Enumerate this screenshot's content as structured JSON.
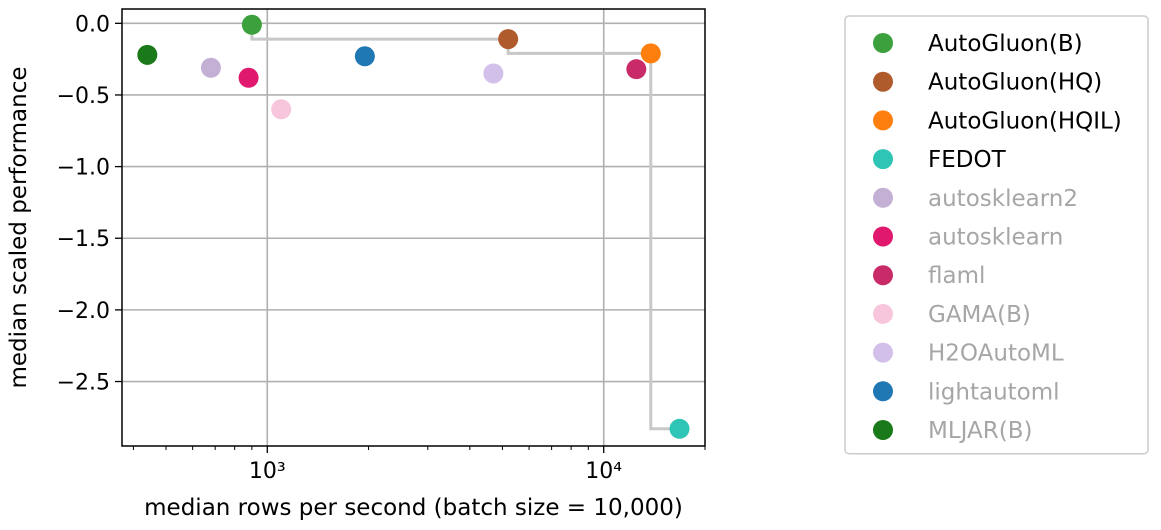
{
  "chart_data": {
    "type": "scatter",
    "xlabel": "median rows per second (batch size = 10,000)",
    "ylabel": "median scaled performance",
    "x_scale": "log",
    "xlim": [
      370,
      20000
    ],
    "ylim": [
      -2.95,
      0.1
    ],
    "x_ticks": [
      {
        "value": 1000,
        "label": "10³"
      },
      {
        "value": 10000,
        "label": "10⁴"
      }
    ],
    "y_ticks": [
      {
        "value": 0.0,
        "label": "0.0"
      },
      {
        "value": -0.5,
        "label": "−0.5"
      },
      {
        "value": -1.0,
        "label": "−1.0"
      },
      {
        "value": -1.5,
        "label": "−1.5"
      },
      {
        "value": -2.0,
        "label": "−2.0"
      },
      {
        "value": -2.5,
        "label": "−2.5"
      }
    ],
    "grid": true,
    "legend_position": "right",
    "series": [
      {
        "name": "AutoGluon(B)",
        "color": "#3ca13c",
        "x": 900,
        "y": -0.01,
        "legend_color": "#000000"
      },
      {
        "name": "AutoGluon(HQ)",
        "color": "#b05b2c",
        "x": 5200,
        "y": -0.11,
        "legend_color": "#000000"
      },
      {
        "name": "AutoGluon(HQIL)",
        "color": "#ff7f0e",
        "x": 13800,
        "y": -0.21,
        "legend_color": "#000000"
      },
      {
        "name": "FEDOT",
        "color": "#2ec4b6",
        "x": 16800,
        "y": -2.83,
        "legend_color": "#000000"
      },
      {
        "name": "autosklearn2",
        "color": "#c5b0d5",
        "x": 680,
        "y": -0.31,
        "legend_color": "#a6a6a6"
      },
      {
        "name": "autosklearn",
        "color": "#e0196e",
        "x": 880,
        "y": -0.38,
        "legend_color": "#a6a6a6"
      },
      {
        "name": "flaml",
        "color": "#c92a68",
        "x": 12500,
        "y": -0.32,
        "legend_color": "#a6a6a6"
      },
      {
        "name": "GAMA(B)",
        "color": "#f8c6dc",
        "x": 1100,
        "y": -0.6,
        "legend_color": "#a6a6a6"
      },
      {
        "name": "H2OAutoML",
        "color": "#d2c0ea",
        "x": 4700,
        "y": -0.35,
        "legend_color": "#a6a6a6"
      },
      {
        "name": "lightautoml",
        "color": "#1f77b4",
        "x": 1950,
        "y": -0.23,
        "legend_color": "#a6a6a6"
      },
      {
        "name": "MLJAR(B)",
        "color": "#1a7a1a",
        "x": 440,
        "y": -0.22,
        "legend_color": "#a6a6a6"
      }
    ],
    "pareto_front": [
      {
        "x": 900,
        "y": -0.01
      },
      {
        "x": 5200,
        "y": -0.11
      },
      {
        "x": 13800,
        "y": -0.21
      },
      {
        "x": 16800,
        "y": -2.83
      }
    ]
  }
}
